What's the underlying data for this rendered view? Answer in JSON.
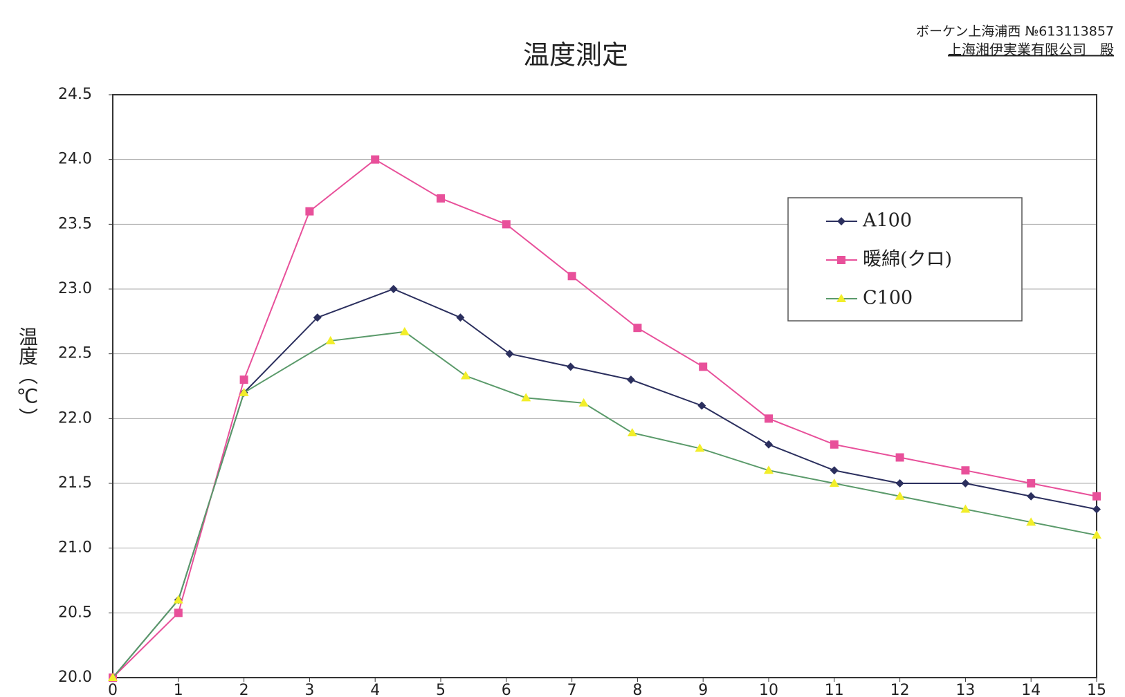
{
  "chart_data": {
    "type": "line",
    "title": "温度測定",
    "header_lines": [
      "ボーケン上海浦西 №613113857",
      "上海湘伊実業有限公司　殿"
    ],
    "y_label": "温度（℃）",
    "xlim": [
      0,
      15
    ],
    "xticks": [
      0,
      1,
      2,
      3,
      4,
      5,
      6,
      7,
      8,
      9,
      10,
      11,
      12,
      13,
      14,
      15
    ],
    "ylim": [
      20,
      24.5
    ],
    "yticks": [
      {
        "value": 20,
        "label": "20.0"
      },
      20.5,
      {
        "value": 21,
        "label": "21.0"
      },
      21.5,
      {
        "value": 22,
        "label": "22.0"
      },
      22.5,
      {
        "value": 23,
        "label": "23.0"
      },
      23.5,
      {
        "value": 24,
        "label": "24.0"
      },
      24.5
    ],
    "grid": true,
    "legend": "upper right",
    "series": [
      {
        "name": "A100",
        "color": "#2b2f5e",
        "marker": "diamond",
        "x": [
          0,
          1,
          2,
          3.12,
          4.28,
          5.3,
          6.05,
          6.98,
          7.9,
          8.98,
          10,
          11,
          12,
          13,
          14,
          15
        ],
        "values": [
          20.0,
          20.6,
          22.2,
          22.78,
          23.0,
          22.78,
          22.5,
          22.4,
          22.3,
          22.1,
          21.8,
          21.6,
          21.5,
          21.5,
          21.4,
          21.3
        ]
      },
      {
        "name": "暖綿(クロ)",
        "color": "#e8509a",
        "marker": "square",
        "x": [
          0,
          1,
          2,
          3,
          4,
          5,
          6,
          7,
          8,
          9,
          10,
          11,
          12,
          13,
          14,
          15
        ],
        "values": [
          20.0,
          20.5,
          22.3,
          23.6,
          24.0,
          23.7,
          23.5,
          23.1,
          22.7,
          22.4,
          22.0,
          21.8,
          21.7,
          21.6,
          21.5,
          21.4
        ]
      },
      {
        "name": "C100",
        "color": "#5a9a6a",
        "marker": "triangle",
        "marker_color": "#f2ee2a",
        "x": [
          0,
          1,
          2,
          3.32,
          4.45,
          5.38,
          6.3,
          7.18,
          7.92,
          8.95,
          10,
          11,
          12,
          13,
          14,
          15
        ],
        "values": [
          20.0,
          20.6,
          22.2,
          22.6,
          22.67,
          22.33,
          22.16,
          22.12,
          21.89,
          21.77,
          21.6,
          21.5,
          21.4,
          21.3,
          21.2,
          21.1
        ]
      }
    ]
  }
}
